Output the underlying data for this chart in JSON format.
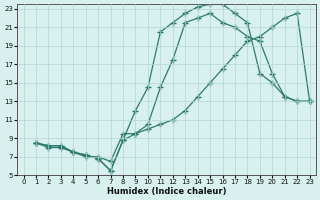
{
  "xlabel": "Humidex (Indice chaleur)",
  "bg_color": "#d8f0ee",
  "grid_color": "#b0d8d4",
  "line_color": "#2d7a6e",
  "xlim": [
    -0.5,
    23.5
  ],
  "ylim": [
    5,
    23.5
  ],
  "xticks": [
    0,
    1,
    2,
    3,
    4,
    5,
    6,
    7,
    8,
    9,
    10,
    11,
    12,
    13,
    14,
    15,
    16,
    17,
    18,
    19,
    20,
    21,
    22,
    23
  ],
  "yticks": [
    5,
    7,
    9,
    11,
    13,
    15,
    17,
    19,
    21,
    23
  ],
  "lines": [
    {
      "x": [
        1,
        2,
        3,
        4,
        5,
        6,
        7,
        8,
        9,
        10,
        11,
        12,
        13,
        14,
        15,
        16,
        17,
        18,
        19,
        20,
        21,
        22,
        23
      ],
      "y": [
        8.5,
        8.2,
        8.2,
        7.5,
        7.2,
        6.8,
        5.5,
        8.8,
        12.0,
        14.5,
        20.5,
        21.5,
        22.5,
        23.2,
        23.5,
        23.5,
        22.5,
        21.5,
        16.0,
        15.0,
        13.5,
        13.0,
        13.0
      ]
    },
    {
      "x": [
        1,
        2,
        3,
        4,
        5,
        6,
        7,
        8,
        9,
        10,
        11,
        12,
        13,
        14,
        15,
        16,
        17,
        18,
        19,
        20,
        21,
        22,
        23
      ],
      "y": [
        8.5,
        8.2,
        8.2,
        7.5,
        7.2,
        6.8,
        5.5,
        8.8,
        9.5,
        10.5,
        14.5,
        17.5,
        21.5,
        22.0,
        22.5,
        21.5,
        21.0,
        20.0,
        19.5,
        16.0,
        13.5,
        13.0,
        13.0
      ]
    },
    {
      "x": [
        1,
        2,
        3,
        4,
        5,
        6,
        7,
        8,
        9,
        10,
        11,
        12,
        13,
        14,
        15,
        16,
        17,
        18,
        19,
        20,
        21,
        22,
        23
      ],
      "y": [
        8.5,
        8.0,
        8.0,
        7.5,
        7.0,
        7.0,
        6.5,
        9.5,
        9.5,
        10.0,
        10.5,
        11.0,
        12.0,
        13.5,
        15.0,
        16.5,
        18.0,
        19.5,
        20.0,
        21.0,
        22.0,
        22.5,
        13.0
      ]
    }
  ]
}
